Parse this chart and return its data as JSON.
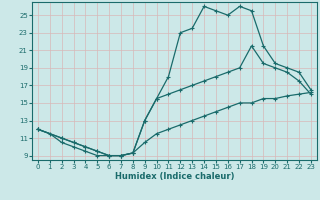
{
  "xlabel": "Humidex (Indice chaleur)",
  "bg_color": "#cce8e8",
  "grid_color": "#b0d0d0",
  "line_color": "#1a6b6b",
  "xlim": [
    -0.5,
    23.5
  ],
  "ylim": [
    8.5,
    26.5
  ],
  "yticks": [
    9,
    11,
    13,
    15,
    17,
    19,
    21,
    23,
    25
  ],
  "xticks": [
    0,
    1,
    2,
    3,
    4,
    5,
    6,
    7,
    8,
    9,
    10,
    11,
    12,
    13,
    14,
    15,
    16,
    17,
    18,
    19,
    20,
    21,
    22,
    23
  ],
  "line1_x": [
    0,
    1,
    2,
    3,
    4,
    5,
    6,
    7,
    8,
    9,
    10,
    11,
    12,
    13,
    14,
    15,
    16,
    17,
    18,
    19,
    20,
    21,
    22,
    23
  ],
  "line1_y": [
    12,
    11.5,
    10.5,
    10,
    9.5,
    9.0,
    9.0,
    9.0,
    9.3,
    13,
    15.5,
    18,
    23,
    23.5,
    26,
    25.5,
    25,
    26,
    25.5,
    21.5,
    19.5,
    19.0,
    18.5,
    16.5
  ],
  "line2_x": [
    0,
    2,
    3,
    4,
    5,
    6,
    7,
    8,
    9,
    10,
    11,
    12,
    13,
    14,
    15,
    16,
    17,
    18,
    19,
    20,
    21,
    22,
    23
  ],
  "line2_y": [
    12,
    11,
    10.5,
    10,
    9.5,
    9.0,
    9.0,
    9.3,
    13,
    15.5,
    16.0,
    16.5,
    17.0,
    17.5,
    18.0,
    18.5,
    19.0,
    21.5,
    19.5,
    19.0,
    18.5,
    17.5,
    16.0
  ],
  "line3_x": [
    0,
    2,
    3,
    4,
    5,
    6,
    7,
    8,
    9,
    10,
    11,
    12,
    13,
    14,
    15,
    16,
    17,
    18,
    19,
    20,
    21,
    22,
    23
  ],
  "line3_y": [
    12,
    11,
    10.5,
    10,
    9.5,
    9.0,
    9.0,
    9.3,
    10.5,
    11.5,
    12.0,
    12.5,
    13.0,
    13.5,
    14.0,
    14.5,
    15.0,
    15.0,
    15.5,
    15.5,
    15.8,
    16.0,
    16.2
  ]
}
